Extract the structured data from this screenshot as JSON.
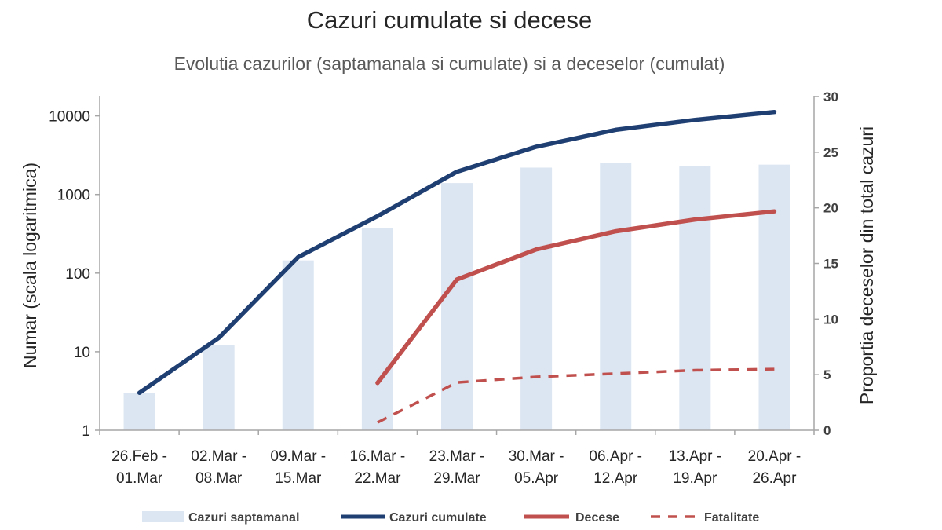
{
  "chart_data": {
    "type": "bar+line",
    "title": "Cazuri cumulate si decese",
    "subtitle": "Evolutia cazurilor (saptamanala si cumulate) si a deceselor (cumulat)",
    "categories": [
      [
        "26.Feb -",
        "01.Mar"
      ],
      [
        "02.Mar -",
        "08.Mar"
      ],
      [
        "09.Mar -",
        "15.Mar"
      ],
      [
        "16.Mar -",
        "22.Mar"
      ],
      [
        "23.Mar -",
        "29.Mar"
      ],
      [
        "30.Mar -",
        "05.Apr"
      ],
      [
        "06.Apr -",
        "12.Apr"
      ],
      [
        "13.Apr -",
        "19.Apr"
      ],
      [
        "20.Apr -",
        "26.Apr"
      ]
    ],
    "left_axis": {
      "label": "Numar (scala logaritmica)",
      "scale": "log",
      "range": [
        1,
        15000
      ],
      "ticks": [
        1,
        10,
        100,
        1000,
        10000
      ],
      "tick_labels": [
        "1",
        "10",
        "100",
        "1000",
        "10000"
      ]
    },
    "right_axis": {
      "label": "Proportia deceselor din total cazuri",
      "scale": "linear",
      "range": [
        0,
        30
      ],
      "ticks": [
        0,
        5,
        10,
        15,
        20,
        25,
        30
      ],
      "tick_labels": [
        "0",
        "5",
        "10",
        "15",
        "20",
        "25",
        "30"
      ]
    },
    "series": [
      {
        "name": "Cazuri saptamanal",
        "type": "bar",
        "axis": "left",
        "color": "#dce6f2",
        "values": [
          3,
          12,
          145,
          370,
          1400,
          2200,
          2550,
          2300,
          2400
        ]
      },
      {
        "name": "Cazuri cumulate",
        "type": "line",
        "axis": "left",
        "color": "#1f3f73",
        "values": [
          3,
          15,
          160,
          530,
          1950,
          4050,
          6650,
          8900,
          11200
        ]
      },
      {
        "name": "Decese",
        "type": "line",
        "axis": "left",
        "color": "#c0504d",
        "values": [
          null,
          null,
          null,
          4,
          83,
          200,
          340,
          480,
          610
        ]
      },
      {
        "name": "Fatalitate",
        "type": "dashed-line",
        "axis": "right",
        "color": "#c0504d",
        "values": [
          null,
          null,
          null,
          0.7,
          4.3,
          4.8,
          5.1,
          5.4,
          5.5
        ]
      }
    ],
    "legend_position": "bottom",
    "grid": false
  }
}
